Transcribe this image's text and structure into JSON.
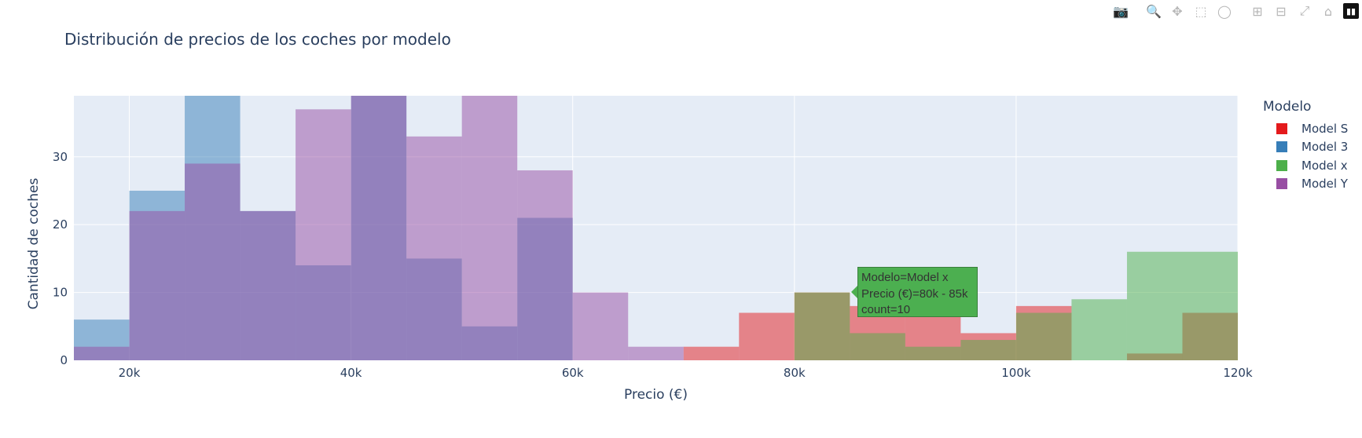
{
  "toolbar": {
    "icons": [
      "camera-icon",
      "zoom-icon",
      "pan-icon",
      "box-select-icon",
      "lasso-select-icon",
      "zoom-in-icon",
      "zoom-out-icon",
      "autoscale-icon",
      "home-icon",
      "plotly-logo-icon"
    ]
  },
  "chart_data": {
    "type": "bar",
    "title": "Distribución de precios de los coches por modelo",
    "xlabel": "Precio (€)",
    "ylabel": "Cantidad de coches",
    "xlim": [
      15000,
      120000
    ],
    "ylim": [
      0,
      39
    ],
    "bin_width": 5000,
    "x_ticks": [
      20000,
      40000,
      60000,
      80000,
      100000,
      120000
    ],
    "x_tick_labels": [
      "20k",
      "40k",
      "60k",
      "80k",
      "100k",
      "120k"
    ],
    "y_ticks": [
      0,
      10,
      20,
      30
    ],
    "y_tick_labels": [
      "0",
      "10",
      "20",
      "30"
    ],
    "grid": true,
    "bar_opacity": 0.5,
    "legend_title": "Modelo",
    "legend_position": "right",
    "series": [
      {
        "name": "Model S",
        "color": "#e41a1c",
        "bins": [
          [
            70000,
            2
          ],
          [
            75000,
            7
          ],
          [
            80000,
            10
          ],
          [
            85000,
            8
          ],
          [
            90000,
            7
          ],
          [
            95000,
            4
          ],
          [
            100000,
            8
          ],
          [
            105000,
            0
          ],
          [
            110000,
            1
          ],
          [
            115000,
            7
          ]
        ]
      },
      {
        "name": "Model 3",
        "color": "#377eb8",
        "bins": [
          [
            15000,
            6
          ],
          [
            20000,
            25
          ],
          [
            25000,
            39
          ],
          [
            30000,
            22
          ],
          [
            35000,
            14
          ],
          [
            40000,
            39
          ],
          [
            45000,
            15
          ],
          [
            50000,
            5
          ],
          [
            55000,
            21
          ]
        ]
      },
      {
        "name": "Model x",
        "color": "#4daf4a",
        "bins": [
          [
            80000,
            10
          ],
          [
            85000,
            4
          ],
          [
            90000,
            2
          ],
          [
            95000,
            3
          ],
          [
            100000,
            7
          ],
          [
            105000,
            9
          ],
          [
            110000,
            16
          ],
          [
            115000,
            16
          ]
        ]
      },
      {
        "name": "Model Y",
        "color": "#984ea3",
        "bins": [
          [
            15000,
            2
          ],
          [
            20000,
            22
          ],
          [
            25000,
            29
          ],
          [
            30000,
            22
          ],
          [
            35000,
            37
          ],
          [
            40000,
            39
          ],
          [
            45000,
            33
          ],
          [
            50000,
            39
          ],
          [
            55000,
            28
          ],
          [
            60000,
            10
          ],
          [
            65000,
            2
          ]
        ]
      }
    ]
  },
  "tooltip": {
    "line1": "Modelo=Model x",
    "line2": "Precio (€)=80k - 85k",
    "line3": "count=10"
  }
}
